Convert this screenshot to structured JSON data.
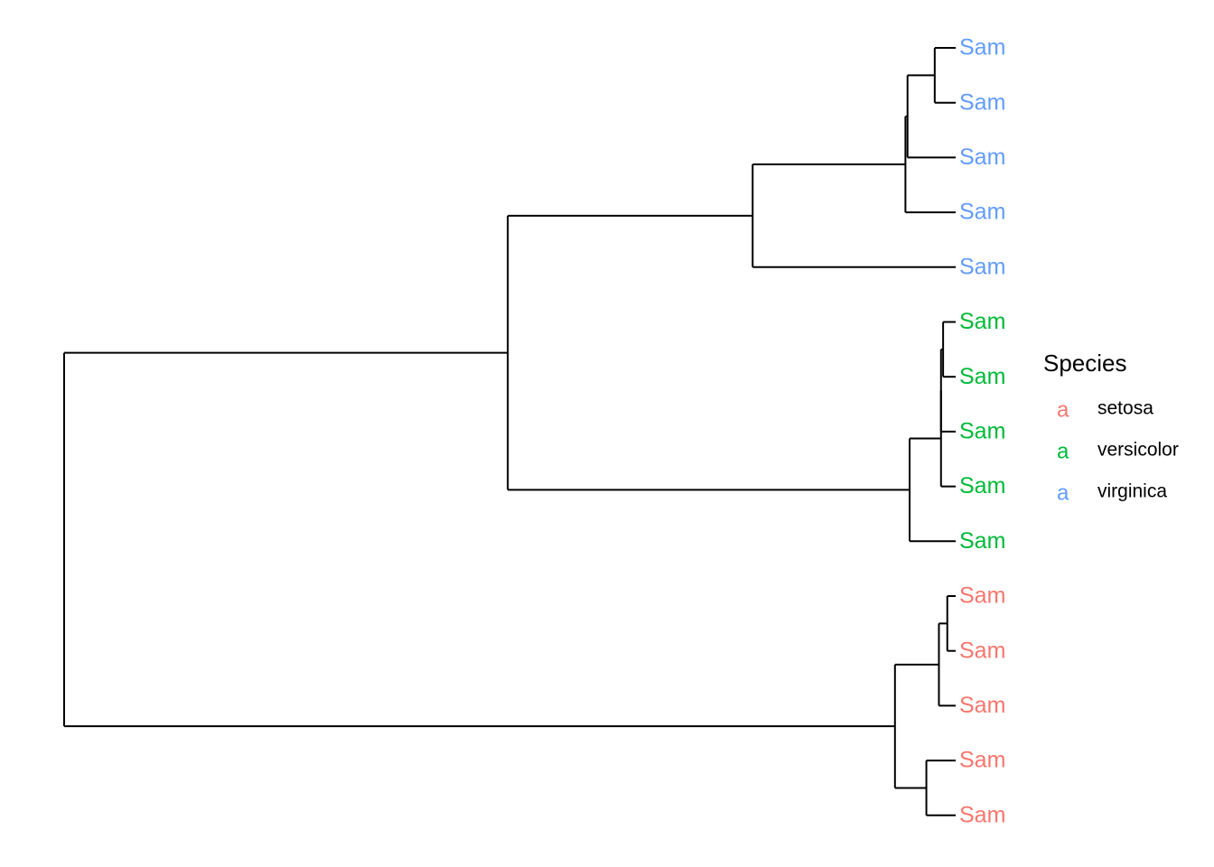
{
  "chart_data": {
    "type": "dendrogram",
    "legend": {
      "title": "Species",
      "key_glyph": "a",
      "entries": [
        {
          "label": "setosa",
          "color": "#F8766D"
        },
        {
          "label": "versicolor",
          "color": "#00BA38"
        },
        {
          "label": "virginica",
          "color": "#619CFF"
        }
      ]
    },
    "leaves": [
      {
        "label": "Sam",
        "species": "virginica"
      },
      {
        "label": "Sam",
        "species": "virginica"
      },
      {
        "label": "Sam",
        "species": "virginica"
      },
      {
        "label": "Sam",
        "species": "virginica"
      },
      {
        "label": "Sam",
        "species": "virginica"
      },
      {
        "label": "Sam",
        "species": "versicolor"
      },
      {
        "label": "Sam",
        "species": "versicolor"
      },
      {
        "label": "Sam",
        "species": "versicolor"
      },
      {
        "label": "Sam",
        "species": "versicolor"
      },
      {
        "label": "Sam",
        "species": "versicolor"
      },
      {
        "label": "Sam",
        "species": "setosa"
      },
      {
        "label": "Sam",
        "species": "setosa"
      },
      {
        "label": "Sam",
        "species": "setosa"
      },
      {
        "label": "Sam",
        "species": "setosa"
      },
      {
        "label": "Sam",
        "species": "setosa"
      }
    ],
    "tree": {
      "h": 4.26,
      "c": [
        {
          "h": 2.14,
          "c": [
            {
              "h": 0.97,
              "c": [
                {
                  "h": 0.24,
                  "c": [
                    {
                      "h": 0.23,
                      "c": [
                        {
                          "h": 0.1,
                          "c": [
                            {
                              "leaf": 0
                            },
                            {
                              "leaf": 1
                            }
                          ]
                        },
                        {
                          "leaf": 2
                        }
                      ]
                    },
                    {
                      "leaf": 3
                    }
                  ]
                },
                {
                  "leaf": 4
                }
              ]
            },
            {
              "h": 0.22,
              "c": [
                {
                  "h": 0.07,
                  "c": [
                    {
                      "h": 0.07,
                      "c": [
                        {
                          "h": 0.06,
                          "c": [
                            {
                              "leaf": 5
                            },
                            {
                              "leaf": 6
                            }
                          ]
                        },
                        {
                          "leaf": 7
                        }
                      ]
                    },
                    {
                      "leaf": 8
                    }
                  ]
                },
                {
                  "leaf": 9
                }
              ]
            }
          ]
        },
        {
          "h": 0.29,
          "c": [
            {
              "h": 0.08,
              "c": [
                {
                  "h": 0.04,
                  "c": [
                    {
                      "leaf": 10
                    },
                    {
                      "leaf": 11
                    }
                  ]
                },
                {
                  "leaf": 12
                }
              ]
            },
            {
              "h": 0.14,
              "c": [
                {
                  "leaf": 13
                },
                {
                  "leaf": 14
                }
              ]
            }
          ]
        }
      ]
    }
  }
}
